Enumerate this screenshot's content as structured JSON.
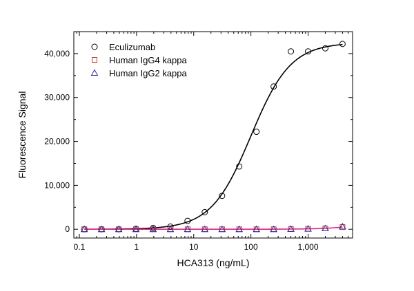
{
  "chart_data": {
    "type": "scatter",
    "title": "",
    "xlabel": "HCA313 (ng/mL)",
    "ylabel": "Fluorescence Signal",
    "xscale": "log",
    "xlim": [
      0.08,
      6000
    ],
    "ylim": [
      -2000,
      45000
    ],
    "x_ticks": [
      {
        "value": 0.1,
        "label": "0.1"
      },
      {
        "value": 1,
        "label": "1"
      },
      {
        "value": 10,
        "label": "10"
      },
      {
        "value": 100,
        "label": "100"
      },
      {
        "value": 1000,
        "label": "1,000"
      }
    ],
    "y_ticks": [
      {
        "value": 0,
        "label": "0"
      },
      {
        "value": 10000,
        "label": "10,000"
      },
      {
        "value": 20000,
        "label": "20,000"
      },
      {
        "value": 30000,
        "label": "30,000"
      },
      {
        "value": 40000,
        "label": "40,000"
      }
    ],
    "grid": false,
    "legend_position": "top-left",
    "series": [
      {
        "name": "Eculizumab",
        "marker": "circle",
        "color": "#000000",
        "fit_color": "#000000",
        "x": [
          0.122,
          0.244,
          0.488,
          0.977,
          1.95,
          3.91,
          7.81,
          15.6,
          31.3,
          62.5,
          125,
          250,
          500,
          1000,
          2000,
          4000
        ],
        "y": [
          0,
          0,
          0,
          100,
          300,
          600,
          1900,
          3900,
          7600,
          14300,
          22200,
          32500,
          40500,
          40500,
          41200,
          42200
        ]
      },
      {
        "name": "Human IgG4 kappa",
        "marker": "square",
        "color": "#c0392b",
        "fit_color": "#e0218a",
        "x": [
          0.122,
          0.244,
          0.488,
          0.977,
          1.95,
          3.91,
          7.81,
          15.6,
          31.3,
          62.5,
          125,
          250,
          500,
          1000,
          2000,
          4000
        ],
        "y": [
          0,
          0,
          0,
          0,
          0,
          0,
          0,
          0,
          0,
          0,
          0,
          0,
          50,
          100,
          200,
          500
        ]
      },
      {
        "name": "Human IgG2 kappa",
        "marker": "triangle",
        "color": "#2c2c9c",
        "fit_color": "#e0218a",
        "x": [
          0.122,
          0.244,
          0.488,
          0.977,
          1.95,
          3.91,
          7.81,
          15.6,
          31.3,
          62.5,
          125,
          250,
          500,
          1000,
          2000,
          4000
        ],
        "y": [
          0,
          0,
          0,
          0,
          0,
          0,
          0,
          0,
          0,
          0,
          0,
          0,
          50,
          100,
          200,
          600
        ]
      }
    ]
  }
}
